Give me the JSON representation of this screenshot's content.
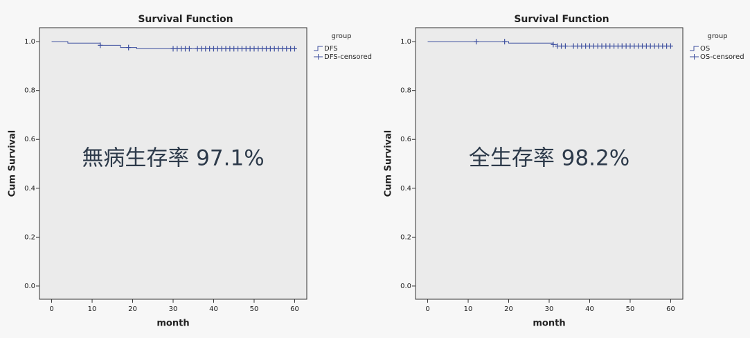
{
  "chart_data": [
    {
      "type": "step",
      "title": "Survival Function",
      "xlabel": "month",
      "ylabel": "Cum Survival",
      "annotation": "無病生存率  97.1%",
      "legend_title": "group",
      "xlim": [
        -3,
        63
      ],
      "ylim": [
        -0.054,
        1.057
      ],
      "xticks": [
        0,
        10,
        20,
        30,
        40,
        50,
        60
      ],
      "yticks": [
        {
          "value": 0,
          "label": "0.0"
        },
        0.2,
        0.4,
        0.6,
        0.8,
        {
          "value": 1,
          "label": "1.0"
        }
      ],
      "series": [
        {
          "name": "DFS",
          "color": "#3d4f9f",
          "x": [
            0,
            4,
            12,
            17,
            21,
            60
          ],
          "values": [
            1.0,
            0.994,
            0.985,
            0.976,
            0.971,
            0.971
          ]
        },
        {
          "name": "DFS-censored",
          "color": "#3d4f9f",
          "marker": "+",
          "x": [
            12,
            19,
            30,
            31,
            32,
            33,
            34,
            36,
            37,
            38,
            39,
            40,
            41,
            42,
            43,
            44,
            45,
            46,
            47,
            48,
            49,
            50,
            51,
            52,
            53,
            54,
            55,
            56,
            57,
            58,
            59,
            60
          ],
          "values": [
            0.985,
            0.976,
            0.971,
            0.971,
            0.971,
            0.971,
            0.971,
            0.971,
            0.971,
            0.971,
            0.971,
            0.971,
            0.971,
            0.971,
            0.971,
            0.971,
            0.971,
            0.971,
            0.971,
            0.971,
            0.971,
            0.971,
            0.971,
            0.971,
            0.971,
            0.971,
            0.971,
            0.971,
            0.971,
            0.971,
            0.971,
            0.971
          ]
        }
      ]
    },
    {
      "type": "step",
      "title": "Survival Function",
      "xlabel": "month",
      "ylabel": "Cum Survival",
      "annotation": "全生存率  98.2%",
      "legend_title": "group",
      "xlim": [
        -3,
        63
      ],
      "ylim": [
        -0.054,
        1.057
      ],
      "xticks": [
        0,
        10,
        20,
        30,
        40,
        50,
        60
      ],
      "yticks": [
        {
          "value": 0,
          "label": "0.0"
        },
        0.2,
        0.4,
        0.6,
        0.8,
        {
          "value": 1,
          "label": "1.0"
        }
      ],
      "series": [
        {
          "name": "OS",
          "color": "#3d4f9f",
          "x": [
            0,
            20,
            31,
            32,
            60
          ],
          "values": [
            1.0,
            0.994,
            0.988,
            0.982,
            0.982
          ]
        },
        {
          "name": "OS-censored",
          "color": "#3d4f9f",
          "marker": "+",
          "x": [
            12,
            19,
            31,
            32,
            33,
            34,
            36,
            37,
            38,
            39,
            40,
            41,
            42,
            43,
            44,
            45,
            46,
            47,
            48,
            49,
            50,
            51,
            52,
            53,
            54,
            55,
            56,
            57,
            58,
            59,
            60
          ],
          "values": [
            1.0,
            1.0,
            0.988,
            0.982,
            0.982,
            0.982,
            0.982,
            0.982,
            0.982,
            0.982,
            0.982,
            0.982,
            0.982,
            0.982,
            0.982,
            0.982,
            0.982,
            0.982,
            0.982,
            0.982,
            0.982,
            0.982,
            0.982,
            0.982,
            0.982,
            0.982,
            0.982,
            0.982,
            0.982,
            0.982,
            0.982
          ]
        }
      ]
    }
  ]
}
